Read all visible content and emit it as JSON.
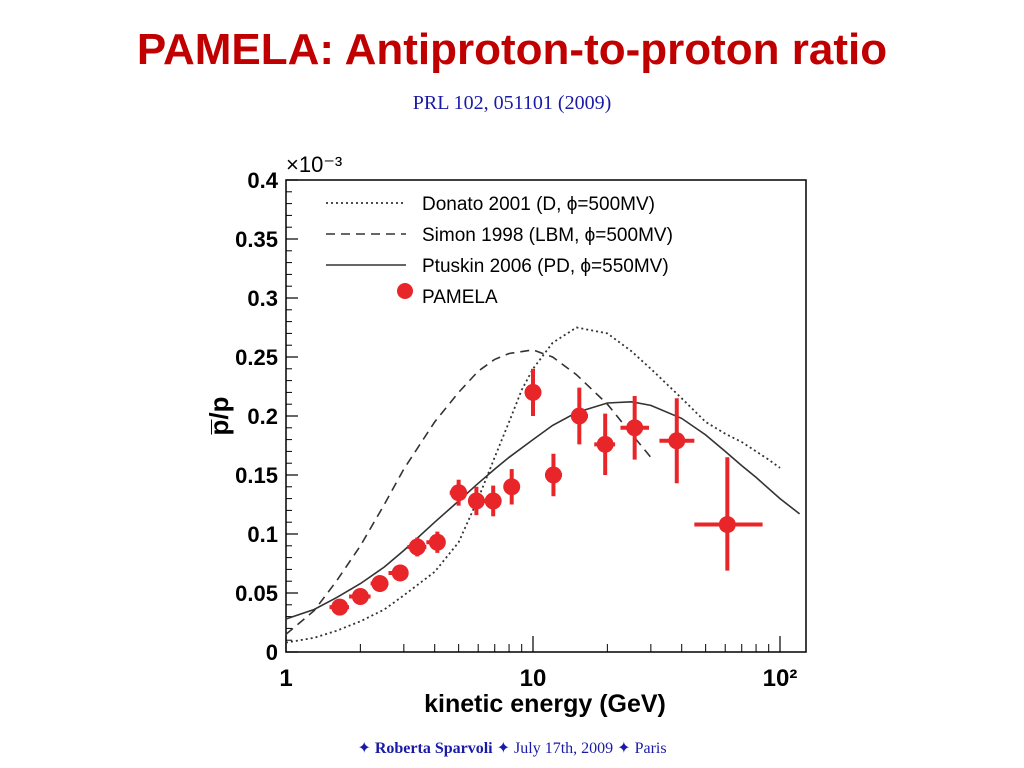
{
  "slide": {
    "title": "PAMELA: Antiproton-to-proton ratio",
    "reference": "PRL 102, 051101 (2009)",
    "footer": {
      "star": "✦",
      "author": "Roberta Sparvoli",
      "date": "July 17th, 2009",
      "place": "Paris"
    },
    "colors": {
      "title": "#c00000",
      "reference": "#1a1aa8",
      "data_points": "#e8262a",
      "curves": "#333333"
    }
  },
  "chart_data": {
    "type": "scatter",
    "xscale": "log",
    "xlim": [
      1,
      100
    ],
    "ylim": [
      0,
      0.4
    ],
    "xlabel": "kinetic energy (GeV)",
    "ylabel": "p̅/p",
    "exponent_label": "×10⁻³",
    "x_tick_labels": [
      {
        "value": 1,
        "label": "1"
      },
      {
        "value": 10,
        "label": "10"
      },
      {
        "value": 100,
        "label": "10²"
      }
    ],
    "y_ticks": [
      0,
      0.05,
      0.1,
      0.15,
      0.2,
      0.25,
      0.3,
      0.35,
      0.4
    ],
    "y_tick_labels": [
      "0",
      "0.05",
      "0.1",
      "0.15",
      "0.2",
      "0.25",
      "0.3",
      "0.35",
      "0.4"
    ],
    "legend_position": "top-left",
    "series": [
      {
        "name": "Donato 2001 (D, ϕ=500MV)",
        "kind": "line",
        "dash": "dotted",
        "x": [
          1,
          1.3,
          1.6,
          2,
          2.5,
          3,
          4,
          5,
          6,
          7,
          8,
          9,
          10,
          12,
          15,
          20,
          25,
          30,
          40,
          50,
          60,
          70,
          80,
          90,
          100
        ],
        "y": [
          0.008,
          0.012,
          0.018,
          0.026,
          0.036,
          0.048,
          0.068,
          0.093,
          0.13,
          0.165,
          0.195,
          0.222,
          0.24,
          0.262,
          0.275,
          0.27,
          0.255,
          0.24,
          0.215,
          0.195,
          0.185,
          0.178,
          0.17,
          0.163,
          0.156
        ]
      },
      {
        "name": "Simon 1998 (LBM, ϕ=500MV)",
        "kind": "line",
        "dash": "dashed",
        "x": [
          1,
          1.3,
          1.6,
          2,
          2.5,
          3,
          4,
          5,
          6,
          7,
          8,
          10,
          12,
          15,
          20,
          25,
          30
        ],
        "y": [
          0.015,
          0.035,
          0.06,
          0.09,
          0.125,
          0.155,
          0.195,
          0.22,
          0.238,
          0.248,
          0.253,
          0.256,
          0.25,
          0.235,
          0.21,
          0.185,
          0.165
        ]
      },
      {
        "name": "Ptuskin 2006 (PD, ϕ=550MV)",
        "kind": "line",
        "dash": "solid",
        "x": [
          1,
          1.3,
          1.6,
          2,
          2.5,
          3,
          4,
          5,
          6,
          7,
          8,
          10,
          12,
          15,
          20,
          25,
          30,
          40,
          50,
          60,
          70,
          80,
          100,
          120
        ],
        "y": [
          0.028,
          0.036,
          0.046,
          0.058,
          0.072,
          0.086,
          0.11,
          0.128,
          0.143,
          0.155,
          0.165,
          0.18,
          0.192,
          0.203,
          0.211,
          0.212,
          0.209,
          0.198,
          0.184,
          0.17,
          0.158,
          0.148,
          0.13,
          0.117
        ]
      },
      {
        "name": "PAMELA",
        "kind": "points",
        "points": [
          {
            "x": 1.65,
            "y": 0.038,
            "xlo": 1.5,
            "xhi": 1.8,
            "ylo": 0.034,
            "yhi": 0.042
          },
          {
            "x": 2.0,
            "y": 0.047,
            "xlo": 1.8,
            "xhi": 2.2,
            "ylo": 0.042,
            "yhi": 0.052
          },
          {
            "x": 2.4,
            "y": 0.058,
            "xlo": 2.2,
            "xhi": 2.6,
            "ylo": 0.052,
            "yhi": 0.064
          },
          {
            "x": 2.9,
            "y": 0.067,
            "xlo": 2.6,
            "xhi": 3.1,
            "ylo": 0.06,
            "yhi": 0.074
          },
          {
            "x": 3.4,
            "y": 0.089,
            "xlo": 3.1,
            "xhi": 3.7,
            "ylo": 0.081,
            "yhi": 0.097
          },
          {
            "x": 4.1,
            "y": 0.093,
            "xlo": 3.7,
            "xhi": 4.4,
            "ylo": 0.084,
            "yhi": 0.102
          },
          {
            "x": 5.0,
            "y": 0.135,
            "xlo": 4.6,
            "xhi": 5.3,
            "ylo": 0.124,
            "yhi": 0.146
          },
          {
            "x": 5.9,
            "y": 0.128,
            "xlo": 5.5,
            "xhi": 6.4,
            "ylo": 0.116,
            "yhi": 0.14
          },
          {
            "x": 6.9,
            "y": 0.128,
            "xlo": 6.4,
            "xhi": 7.4,
            "ylo": 0.115,
            "yhi": 0.141
          },
          {
            "x": 8.2,
            "y": 0.14,
            "xlo": 7.6,
            "xhi": 8.8,
            "ylo": 0.125,
            "yhi": 0.155
          },
          {
            "x": 10.0,
            "y": 0.22,
            "xlo": 9.3,
            "xhi": 10.8,
            "ylo": 0.2,
            "yhi": 0.24
          },
          {
            "x": 12.1,
            "y": 0.15,
            "xlo": 11.2,
            "xhi": 13.1,
            "ylo": 0.132,
            "yhi": 0.168
          },
          {
            "x": 15.4,
            "y": 0.2,
            "xlo": 14.3,
            "xhi": 16.7,
            "ylo": 0.176,
            "yhi": 0.224
          },
          {
            "x": 19.6,
            "y": 0.176,
            "xlo": 17.7,
            "xhi": 21.5,
            "ylo": 0.15,
            "yhi": 0.202
          },
          {
            "x": 25.8,
            "y": 0.19,
            "xlo": 22.6,
            "xhi": 29.5,
            "ylo": 0.163,
            "yhi": 0.217
          },
          {
            "x": 38.2,
            "y": 0.179,
            "xlo": 32.5,
            "xhi": 45.0,
            "ylo": 0.143,
            "yhi": 0.215
          },
          {
            "x": 61.2,
            "y": 0.108,
            "xlo": 45.0,
            "xhi": 85.0,
            "ylo": 0.069,
            "yhi": 0.165
          }
        ]
      }
    ]
  }
}
